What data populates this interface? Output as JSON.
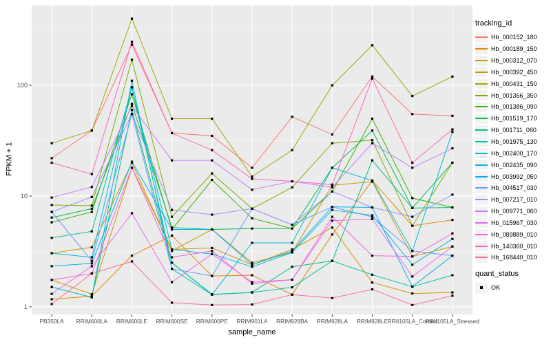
{
  "chart_data": {
    "type": "line",
    "xlabel": "sample_name",
    "ylabel": "FPKM + 1",
    "y_scale": "log10",
    "y_ticks": [
      1,
      10,
      100
    ],
    "y_tick_labels": [
      "1",
      "10",
      "100"
    ],
    "y_minor_ticks": [
      3.162,
      31.62,
      316.2
    ],
    "ylim": [
      0.85,
      527
    ],
    "grid": true,
    "legend_position": "right",
    "point_marker": "black-square",
    "x_categories": [
      "PB350LA",
      "RRIM600LA",
      "RRIM600LE",
      "RRIM600SE",
      "RRIM600PE",
      "RRIM901LA",
      "RRIM928BA",
      "RRIM928LA",
      "RRIM928LE",
      "RRII105LA_Control",
      "RRII105LA_Stressed"
    ],
    "legend": {
      "color_title": "tracking_id",
      "shape_title": "quant_status",
      "shape_items": [
        {
          "label": "OK",
          "marker": "black-square"
        }
      ]
    },
    "series": [
      {
        "name": "Hb_000152_180",
        "color": "#F8766D",
        "values": [
          22,
          39,
          233,
          37,
          35,
          18,
          52,
          36,
          120,
          55,
          53
        ]
      },
      {
        "name": "Hb_000189_150",
        "color": "#E58700",
        "values": [
          1.17,
          1.25,
          2.9,
          4.4,
          1.9,
          1.93,
          1.29,
          4.5,
          13.8,
          5.4,
          6.1
        ]
      },
      {
        "name": "Hb_000312_070",
        "color": "#D39200",
        "values": [
          1.75,
          1.3,
          18,
          3.3,
          3.4,
          2.4,
          3.3,
          5.2,
          1.66,
          1.32,
          1.35
        ]
      },
      {
        "name": "Hb_000392_450",
        "color": "#C49A00",
        "values": [
          3.05,
          3.45,
          20,
          3.2,
          5.0,
          2.5,
          3.1,
          12.5,
          13.5,
          2.85,
          3.5
        ]
      },
      {
        "name": "Hb_000431_150",
        "color": "#A3A500",
        "values": [
          30,
          39,
          400,
          50,
          50,
          15,
          26,
          100,
          230,
          80,
          120
        ]
      },
      {
        "name": "Hb_001366_350",
        "color": "#7CAE00",
        "values": [
          8.3,
          8.2,
          170,
          6.5,
          16,
          7.7,
          12,
          30,
          32,
          5.4,
          20
        ]
      },
      {
        "name": "Hb_001386_090",
        "color": "#39B600",
        "values": [
          5.8,
          7.2,
          83,
          5.0,
          14,
          6.3,
          5.1,
          11,
          50,
          9.6,
          7.9
        ]
      },
      {
        "name": "Hb_001519_170",
        "color": "#00BB4E",
        "values": [
          6.4,
          7.7,
          68,
          5.2,
          5.0,
          5.1,
          5.1,
          18,
          39,
          7.8,
          20
        ]
      },
      {
        "name": "Hb_001711_060",
        "color": "#00BF7D",
        "values": [
          1.51,
          1.22,
          60,
          2.5,
          1.29,
          1.35,
          2.3,
          2.6,
          21,
          7.8,
          7.9
        ]
      },
      {
        "name": "Hb_001975_130",
        "color": "#00C1A3",
        "values": [
          4.2,
          4.8,
          96,
          2.5,
          1.3,
          1.35,
          1.5,
          2.6,
          1.95,
          1.52,
          1.93
        ]
      },
      {
        "name": "Hb_002400_170",
        "color": "#00BFC4",
        "values": [
          1.51,
          1.22,
          110,
          2.2,
          1.29,
          3.78,
          3.78,
          18,
          13.8,
          3.2,
          38
        ]
      },
      {
        "name": "Hb_002435_090",
        "color": "#00BAE0",
        "values": [
          3.05,
          2.8,
          96,
          3.3,
          3.0,
          2.3,
          3.1,
          7.5,
          6.7,
          2.4,
          4.1
        ]
      },
      {
        "name": "Hb_003992_050",
        "color": "#00B0F6",
        "values": [
          2.33,
          2.47,
          20.4,
          5.0,
          5.0,
          2.4,
          3.2,
          8,
          7.9,
          1.52,
          2.9
        ]
      },
      {
        "name": "Hb_004517_030",
        "color": "#619CFF",
        "values": [
          7.2,
          2.6,
          55,
          2.2,
          1.9,
          7.7,
          5.5,
          8,
          6.5,
          3.2,
          2.9
        ]
      },
      {
        "name": "Hb_007217_010",
        "color": "#9590FF",
        "values": [
          7.2,
          9.8,
          55,
          7.5,
          6.8,
          7.7,
          5.5,
          11,
          7.9,
          6.5,
          10.3
        ]
      },
      {
        "name": "Hb_009771_060",
        "color": "#C77CFF",
        "values": [
          9.7,
          12.1,
          65,
          21,
          21,
          11.4,
          13.6,
          12,
          30,
          18,
          27
        ]
      },
      {
        "name": "Hb_015967_030",
        "color": "#E76BF3",
        "values": [
          1.31,
          2.33,
          7.0,
          1.67,
          3.0,
          1.67,
          1.76,
          6.0,
          6.2,
          1.88,
          3.5
        ]
      },
      {
        "name": "Hb_089889_010",
        "color": "#FA62DB",
        "values": [
          1.75,
          2.0,
          18,
          2.8,
          3.2,
          1.62,
          1.76,
          6.5,
          2.9,
          2.85,
          4.6
        ]
      },
      {
        "name": "Hb_140360_010",
        "color": "#FF62BC",
        "values": [
          20,
          15.8,
          247,
          37,
          26,
          14.3,
          13.6,
          12.7,
          115,
          20,
          40
        ]
      },
      {
        "name": "Hb_168440_010",
        "color": "#FF6A98",
        "values": [
          1.06,
          2.0,
          2.57,
          1.09,
          1.04,
          1.05,
          1.29,
          1.2,
          1.44,
          1.04,
          1.26
        ]
      }
    ]
  },
  "style": {
    "panel_bg": "#EBEBEB",
    "grid_color": "#FFFFFF",
    "axis_text_color": "#4D4D4D",
    "axis_title_color": "#000000",
    "tick_color": "#333333",
    "marker_color": "#000000",
    "legend_key_bg": "#F2F2F2"
  }
}
